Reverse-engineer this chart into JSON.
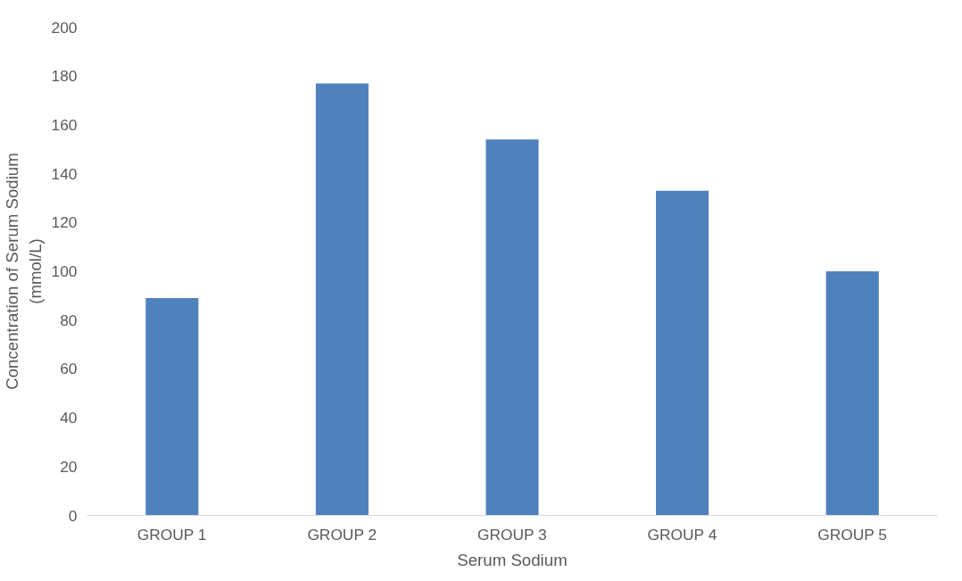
{
  "chart_data": {
    "type": "bar",
    "xlabel": "Serum Sodium",
    "ylabel": "Concentration of Serum Sodium\n(mmol/L)",
    "categories": [
      "GROUP 1",
      "GROUP 2",
      "GROUP 3",
      "GROUP 4",
      "GROUP 5"
    ],
    "values": [
      89,
      177,
      154,
      133,
      100
    ],
    "color": "#4f81bd",
    "ylim": [
      0,
      200
    ],
    "yticks": [
      0,
      20,
      40,
      60,
      80,
      100,
      120,
      140,
      160,
      180,
      200
    ],
    "grid": false
  }
}
